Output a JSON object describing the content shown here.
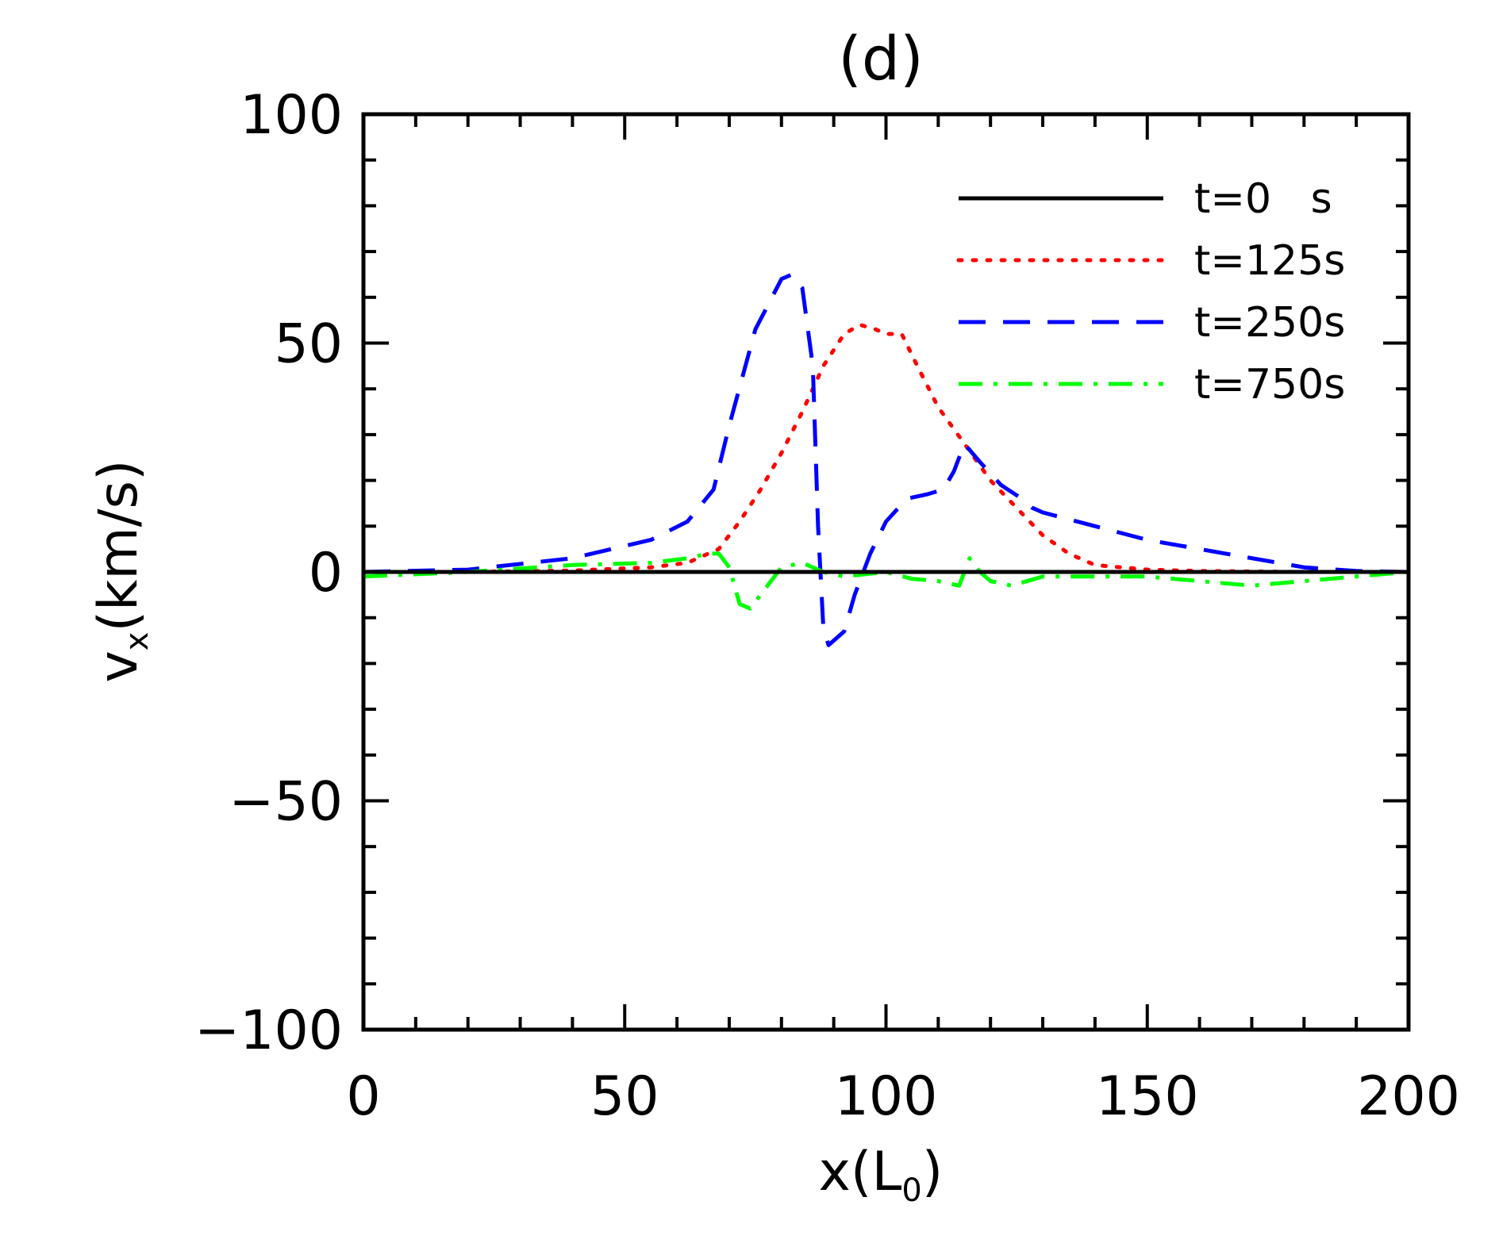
{
  "chart_data": {
    "type": "line",
    "title": "(d)",
    "xlabel": "x(L0)",
    "ylabel": "vx(km/s)",
    "xlim": [
      0,
      200
    ],
    "ylim": [
      -100,
      100
    ],
    "x_ticks": [
      0,
      50,
      100,
      150,
      200
    ],
    "y_ticks": [
      -100,
      -50,
      0,
      50,
      100
    ],
    "x_tick_labels": [
      "0",
      "50",
      "100",
      "150",
      "200"
    ],
    "y_tick_labels": [
      "−100",
      "−50",
      "0",
      "50",
      "100"
    ],
    "x_minor_step": 10,
    "y_minor_step": 10,
    "legend_position": "top-right",
    "series": [
      {
        "name": "t=0   s",
        "color": "#000000",
        "dash": "solid",
        "x": [
          0,
          200
        ],
        "y": [
          0,
          0
        ]
      },
      {
        "name": "t=125s",
        "color": "#ff0000",
        "dash": "dotted",
        "x": [
          0,
          20,
          40,
          55,
          62,
          68,
          72,
          76,
          80,
          84,
          88,
          92,
          95,
          98,
          100,
          103,
          106,
          110,
          115,
          120,
          125,
          130,
          135,
          140,
          150,
          160,
          180,
          200
        ],
        "y": [
          0,
          0,
          0.3,
          1,
          2,
          5,
          11,
          18,
          26,
          35,
          45,
          52,
          54,
          53,
          52,
          52,
          45,
          36,
          28,
          20,
          14,
          8,
          4,
          1.5,
          0.5,
          0.2,
          0,
          0
        ]
      },
      {
        "name": "t=250s",
        "color": "#0000ff",
        "dash": "dashed",
        "x": [
          0,
          20,
          40,
          55,
          62,
          67,
          70,
          75,
          80,
          82,
          84,
          86,
          87,
          88,
          89,
          90,
          92,
          94,
          97,
          100,
          104,
          108,
          111,
          113,
          115,
          118,
          122,
          126,
          128,
          130,
          140,
          150,
          165,
          180,
          190,
          200
        ],
        "y": [
          0,
          0.5,
          3,
          7,
          11,
          18,
          32,
          53,
          64,
          65,
          62,
          45,
          10,
          -12,
          -16,
          -15,
          -13,
          -5,
          4,
          11,
          16,
          17,
          18,
          22,
          28,
          24,
          19,
          16,
          14,
          13,
          10,
          7,
          4,
          1,
          0.2,
          0
        ]
      },
      {
        "name": "t=750s",
        "color": "#00ff00",
        "dash": "dashdot",
        "x": [
          0,
          20,
          40,
          55,
          62,
          66,
          68,
          70,
          72,
          74,
          76,
          78,
          80,
          84,
          88,
          92,
          100,
          105,
          110,
          114,
          116,
          118,
          120,
          124,
          130,
          140,
          150,
          160,
          170,
          180,
          190,
          200
        ],
        "y": [
          -1,
          0,
          1.5,
          2,
          3,
          4,
          4,
          1,
          -7,
          -8,
          -5,
          -2,
          1,
          2,
          0,
          -1,
          0,
          -1.5,
          -2,
          -3,
          3,
          0,
          -2,
          -3,
          -1,
          -1,
          -1,
          -2,
          -3,
          -2,
          -1,
          0
        ]
      }
    ]
  }
}
